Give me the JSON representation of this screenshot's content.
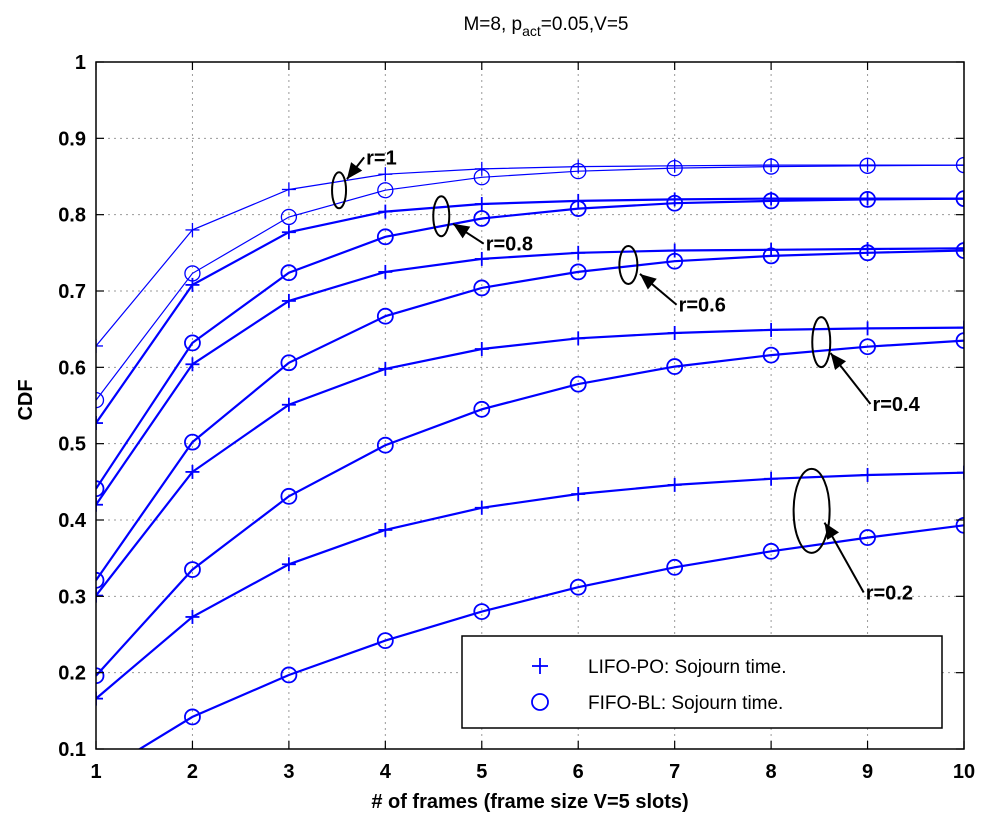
{
  "chart_data": {
    "type": "line",
    "title": "M=8, p",
    "title_sub": "act",
    "title_rest": "=0.05,V=5",
    "xlabel": "# of frames (frame size V=5 slots)",
    "ylabel": "CDF",
    "xlim": [
      1,
      10
    ],
    "ylim": [
      0.1,
      1
    ],
    "xticks": [
      "1",
      "2",
      "3",
      "4",
      "5",
      "6",
      "7",
      "8",
      "9",
      "10"
    ],
    "yticks": [
      "0.1",
      "0.2",
      "0.3",
      "0.4",
      "0.5",
      "0.6",
      "0.7",
      "0.8",
      "0.9",
      "1"
    ],
    "grid": true,
    "legend_position": "bottom-right",
    "legend": [
      {
        "marker": "plus",
        "label": "LIFO-PO: Sojourn time."
      },
      {
        "marker": "circle",
        "label": "FIFO-BL: Sojourn time."
      }
    ],
    "x": [
      1,
      2,
      3,
      4,
      5,
      6,
      7,
      8,
      9,
      10
    ],
    "series": [
      {
        "r": "1",
        "marker": "plus",
        "thin": true,
        "values": [
          0.628,
          0.78,
          0.833,
          0.853,
          0.86,
          0.863,
          0.864,
          0.865,
          0.865,
          0.865
        ]
      },
      {
        "r": "1",
        "marker": "circle",
        "thin": true,
        "values": [
          0.557,
          0.723,
          0.797,
          0.832,
          0.849,
          0.857,
          0.861,
          0.863,
          0.864,
          0.865
        ]
      },
      {
        "r": "0.8",
        "marker": "plus",
        "thin": false,
        "values": [
          0.527,
          0.708,
          0.777,
          0.804,
          0.814,
          0.818,
          0.82,
          0.821,
          0.821,
          0.821
        ]
      },
      {
        "r": "0.8",
        "marker": "circle",
        "thin": false,
        "values": [
          0.441,
          0.632,
          0.724,
          0.771,
          0.795,
          0.808,
          0.815,
          0.818,
          0.82,
          0.821
        ]
      },
      {
        "r": "0.6",
        "marker": "plus",
        "thin": false,
        "values": [
          0.42,
          0.604,
          0.687,
          0.725,
          0.742,
          0.75,
          0.753,
          0.754,
          0.755,
          0.756
        ]
      },
      {
        "r": "0.6",
        "marker": "circle",
        "thin": false,
        "values": [
          0.321,
          0.502,
          0.606,
          0.667,
          0.704,
          0.725,
          0.739,
          0.746,
          0.75,
          0.753
        ]
      },
      {
        "r": "0.4",
        "marker": "plus",
        "thin": false,
        "values": [
          0.301,
          0.463,
          0.551,
          0.598,
          0.624,
          0.638,
          0.645,
          0.649,
          0.651,
          0.652
        ]
      },
      {
        "r": "0.4",
        "marker": "circle",
        "thin": false,
        "values": [
          0.196,
          0.335,
          0.431,
          0.498,
          0.545,
          0.578,
          0.601,
          0.616,
          0.627,
          0.635
        ]
      },
      {
        "r": "0.2",
        "marker": "plus",
        "thin": false,
        "values": [
          0.166,
          0.273,
          0.342,
          0.387,
          0.416,
          0.434,
          0.446,
          0.454,
          0.459,
          0.462
        ]
      },
      {
        "r": "0.2",
        "marker": "circle",
        "thin": false,
        "values": [
          0.065,
          0.142,
          0.197,
          0.242,
          0.28,
          0.312,
          0.338,
          0.359,
          0.377,
          0.393
        ]
      }
    ],
    "annotations": [
      {
        "text": "r=1",
        "ellipse_x": 3.52,
        "ellipse_y": 0.832,
        "text_x": 3.78,
        "text_y": 0.875
      },
      {
        "text": "r=0.8",
        "ellipse_x": 4.58,
        "ellipse_y": 0.798,
        "text_x": 5.02,
        "text_y": 0.762
      },
      {
        "text": "r=0.6",
        "ellipse_x": 6.52,
        "ellipse_y": 0.734,
        "text_x": 7.02,
        "text_y": 0.682
      },
      {
        "text": "r=0.4",
        "ellipse_x": 8.52,
        "ellipse_y": 0.633,
        "text_x": 9.03,
        "text_y": 0.552
      },
      {
        "text": "r=0.2",
        "ellipse_x": 8.42,
        "ellipse_y": 0.412,
        "text_x": 8.96,
        "text_y": 0.305
      }
    ]
  }
}
